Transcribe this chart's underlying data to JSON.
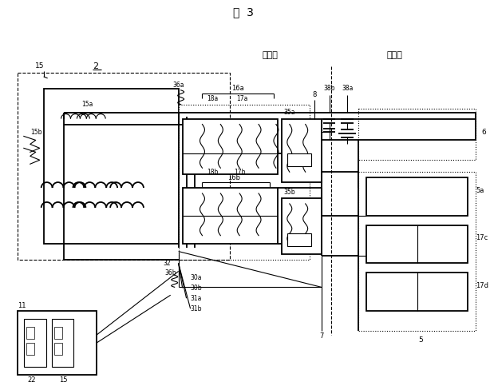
{
  "title": "図  3",
  "label_2": "2",
  "label_sharinjiku": "車輪側",
  "label_shataigawa": "車体側",
  "bg_color": "#ffffff",
  "line_color": "#000000",
  "fig_width": 6.14,
  "fig_height": 4.88,
  "dpi": 100
}
